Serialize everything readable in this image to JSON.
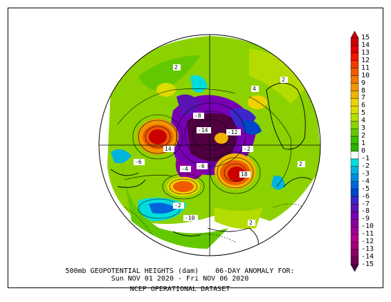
{
  "figure": {
    "title_line1": "500mb GEOPOTENTIAL HEIGHTS (dam)    06-DAY ANOMALY FOR:",
    "title_line2": "Sun NOV 01 2020 - Fri NOV 06 2020",
    "title_line3": "NCEP OPERATIONAL DATASET",
    "projection": "north polar stereographic"
  },
  "colorbar": {
    "levels": [
      "15",
      "14",
      "13",
      "12",
      "11",
      "10",
      "9",
      "8",
      "7",
      "6",
      "5",
      "4",
      "3",
      "2",
      "1",
      "0",
      "-1",
      "-2",
      "-3",
      "-4",
      "-5",
      "-6",
      "-7",
      "-8",
      "-9",
      "-10",
      "-11",
      "-12",
      "-13",
      "-14",
      "-15"
    ],
    "colors": [
      "#c80000",
      "#e00000",
      "#f01800",
      "#f03c00",
      "#f05a00",
      "#f07800",
      "#f09600",
      "#f0b400",
      "#f0d200",
      "#dcdc00",
      "#b4dc00",
      "#8cd200",
      "#64c800",
      "#3cbe00",
      "#28b400",
      "#ffffff",
      "#00dcdc",
      "#00b4dc",
      "#008cdc",
      "#0064dc",
      "#0046c8",
      "#3c28c8",
      "#5a14b4",
      "#7800b4",
      "#8c00a0",
      "#a00096",
      "#b4008c",
      "#a00078",
      "#8c0064",
      "#6e0050",
      "#500040"
    ]
  },
  "map_labels": [
    {
      "text": "2"
    },
    {
      "text": "2"
    },
    {
      "text": "4"
    },
    {
      "text": "-8"
    },
    {
      "text": "-14"
    },
    {
      "text": "-12"
    },
    {
      "text": "14"
    },
    {
      "text": "-2"
    },
    {
      "text": "-4"
    },
    {
      "text": "-6"
    },
    {
      "text": "18"
    },
    {
      "text": "-10"
    },
    {
      "text": "-2"
    },
    {
      "text": "2"
    },
    {
      "text": "-6"
    },
    {
      "text": "2"
    }
  ],
  "anomaly_centers": [
    {
      "sign": "positive",
      "value": 14
    },
    {
      "sign": "positive",
      "value": 18
    },
    {
      "sign": "positive",
      "value": 12
    },
    {
      "sign": "negative",
      "value": -14
    },
    {
      "sign": "negative",
      "value": -12
    },
    {
      "sign": "negative",
      "value": -10
    },
    {
      "sign": "negative",
      "value": -6
    }
  ]
}
